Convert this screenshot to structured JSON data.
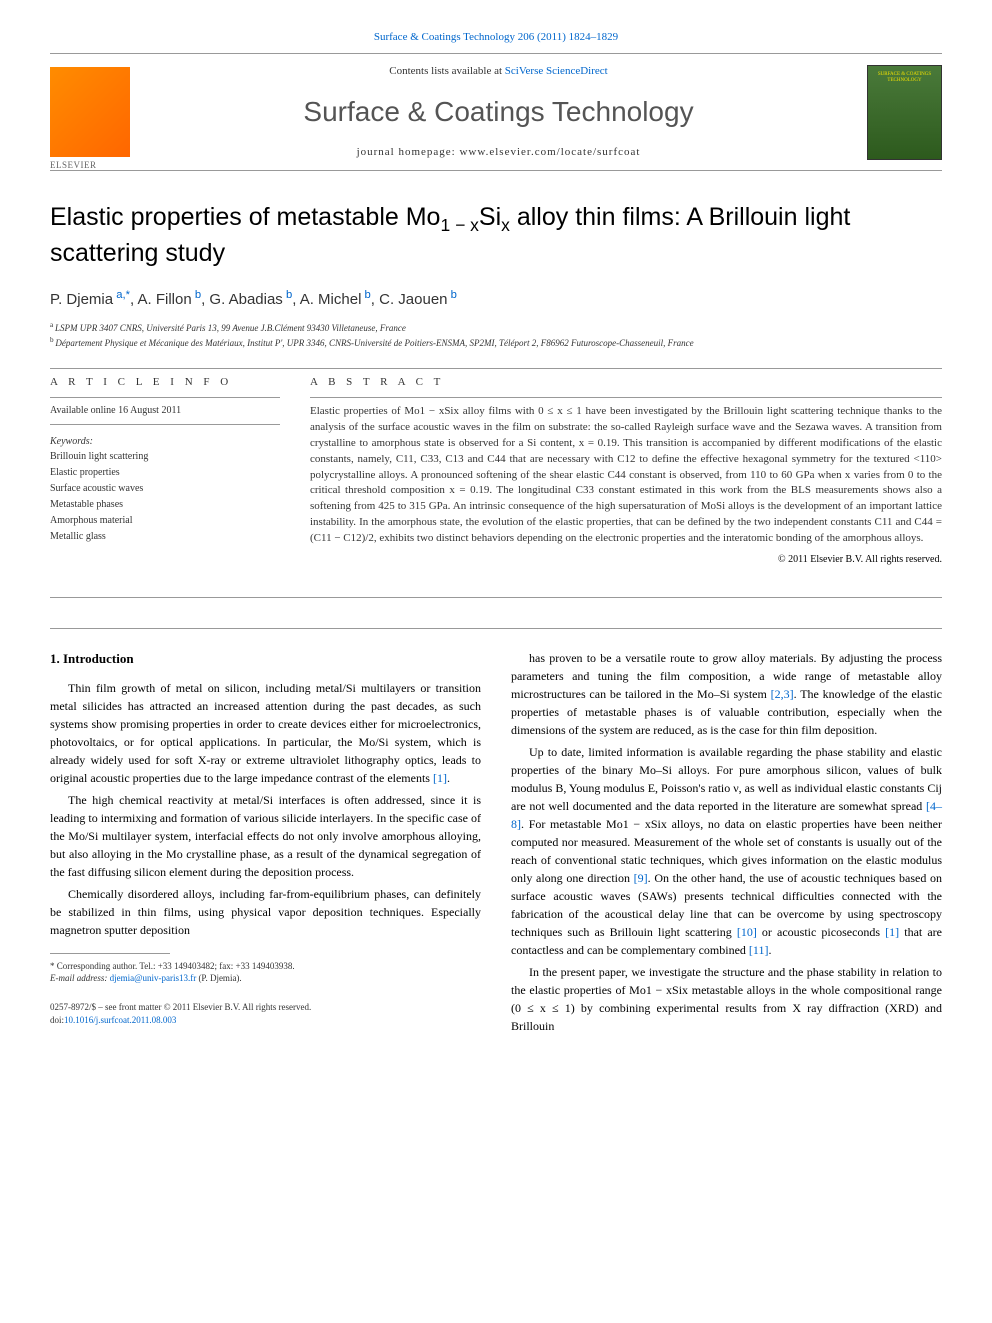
{
  "top_citation": "Surface & Coatings Technology 206 (2011) 1824–1829",
  "header": {
    "contents_prefix": "Contents lists available at ",
    "contents_link": "SciVerse ScienceDirect",
    "journal_title": "Surface & Coatings Technology",
    "homepage_prefix": "journal homepage: ",
    "homepage_url": "www.elsevier.com/locate/surfcoat"
  },
  "article": {
    "title_pre": "Elastic properties of metastable Mo",
    "title_sub1": "1 − x",
    "title_mid": "Si",
    "title_sub2": "x",
    "title_post": " alloy thin films: A Brillouin light scattering study",
    "authors_raw": "P. Djemia|a,*|, A. Fillon|b|, G. Abadias|b|, A. Michel|b|, C. Jaouen|b",
    "affiliations": [
      {
        "sup": "a",
        "text": "LSPM UPR 3407 CNRS, Université Paris 13, 99 Avenue J.B.Clément 93430 Villetaneuse, France"
      },
      {
        "sup": "b",
        "text": "Département Physique et Mécanique des Matériaux, Institut P', UPR 3346, CNRS-Université de Poitiers-ENSMA, SP2MI, Téléport 2, F86962 Futuroscope-Chasseneuil, France"
      }
    ]
  },
  "info": {
    "header": "A R T I C L E   I N F O",
    "available": "Available online 16 August 2011",
    "keywords_label": "Keywords:",
    "keywords": [
      "Brillouin light scattering",
      "Elastic properties",
      "Surface acoustic waves",
      "Metastable phases",
      "Amorphous material",
      "Metallic glass"
    ]
  },
  "abstract": {
    "header": "A B S T R A C T",
    "text": "Elastic properties of Mo1 − xSix alloy films with 0 ≤ x ≤ 1 have been investigated by the Brillouin light scattering technique thanks to the analysis of the surface acoustic waves in the film on substrate: the so-called Rayleigh surface wave and the Sezawa waves. A transition from crystalline to amorphous state is observed for a Si content, x = 0.19. This transition is accompanied by different modifications of the elastic constants, namely, C11, C33, C13 and C44 that are necessary with C12 to define the effective hexagonal symmetry for the textured <110> polycrystalline alloys. A pronounced softening of the shear elastic C44 constant is observed, from 110 to 60 GPa when x varies from 0 to the critical threshold composition x = 0.19. The longitudinal C33 constant estimated in this work from the BLS measurements shows also a softening from 425 to 315 GPa. An intrinsic consequence of the high supersaturation of MoSi alloys is the development of an important lattice instability. In the amorphous state, the evolution of the elastic properties, that can be defined by the two independent constants C11 and C44 = (C11 − C12)/2, exhibits two distinct behaviors depending on the electronic properties and the interatomic bonding of the amorphous alloys.",
    "copyright": "© 2011 Elsevier B.V. All rights reserved."
  },
  "body": {
    "section_number": "1.",
    "section_title": "Introduction",
    "col1": [
      "Thin film growth of metal on silicon, including metal/Si multilayers or transition metal silicides has attracted an increased attention during the past decades, as such systems show promising properties in order to create devices either for microelectronics, photovoltaics, or for optical applications. In particular, the Mo/Si system, which is already widely used for soft X-ray or extreme ultraviolet lithography optics, leads to original acoustic properties due to the large impedance contrast of the elements [1].",
      "The high chemical reactivity at metal/Si interfaces is often addressed, since it is leading to intermixing and formation of various silicide interlayers. In the specific case of the Mo/Si multilayer system, interfacial effects do not only involve amorphous alloying, but also alloying in the Mo crystalline phase, as a result of the dynamical segregation of the fast diffusing silicon element during the deposition process.",
      "Chemically disordered alloys, including far-from-equilibrium phases, can definitely be stabilized in thin films, using physical vapor deposition techniques. Especially magnetron sputter deposition"
    ],
    "col2": [
      "has proven to be a versatile route to grow alloy materials. By adjusting the process parameters and tuning the film composition, a wide range of metastable alloy microstructures can be tailored in the Mo–Si system [2,3]. The knowledge of the elastic properties of metastable phases is of valuable contribution, especially when the dimensions of the system are reduced, as is the case for thin film deposition.",
      "Up to date, limited information is available regarding the phase stability and elastic properties of the binary Mo–Si alloys. For pure amorphous silicon, values of bulk modulus B, Young modulus E, Poisson's ratio ν, as well as individual elastic constants Cij are not well documented and the data reported in the literature are somewhat spread [4–8]. For metastable Mo1 − xSix alloys, no data on elastic properties have been neither computed nor measured. Measurement of the whole set of constants is usually out of the reach of conventional static techniques, which gives information on the elastic modulus only along one direction [9]. On the other hand, the use of acoustic techniques based on surface acoustic waves (SAWs) presents technical difficulties connected with the fabrication of the acoustical delay line that can be overcome by using spectroscopy techniques such as Brillouin light scattering [10] or acoustic picoseconds [1] that are contactless and can be complementary combined [11].",
      "In the present paper, we investigate the structure and the phase stability in relation to the elastic properties of Mo1 − xSix metastable alloys in the whole compositional range (0 ≤ x ≤ 1) by combining experimental results from X ray diffraction (XRD) and Brillouin"
    ]
  },
  "footnote": {
    "corr_label": "* Corresponding author. Tel.: +33 149403482; fax: +33 149403938.",
    "email_label": "E-mail address: ",
    "email": "djemia@univ-paris13.fr",
    "email_name": " (P. Djemia)."
  },
  "bottom": {
    "issn": "0257-8972/$ – see front matter © 2011 Elsevier B.V. All rights reserved.",
    "doi_label": "doi:",
    "doi": "10.1016/j.surfcoat.2011.08.003"
  },
  "colors": {
    "link": "#0066cc",
    "text": "#333333",
    "elsevier_orange": "#ff8c00",
    "cover_green": "#4a7a3a"
  }
}
